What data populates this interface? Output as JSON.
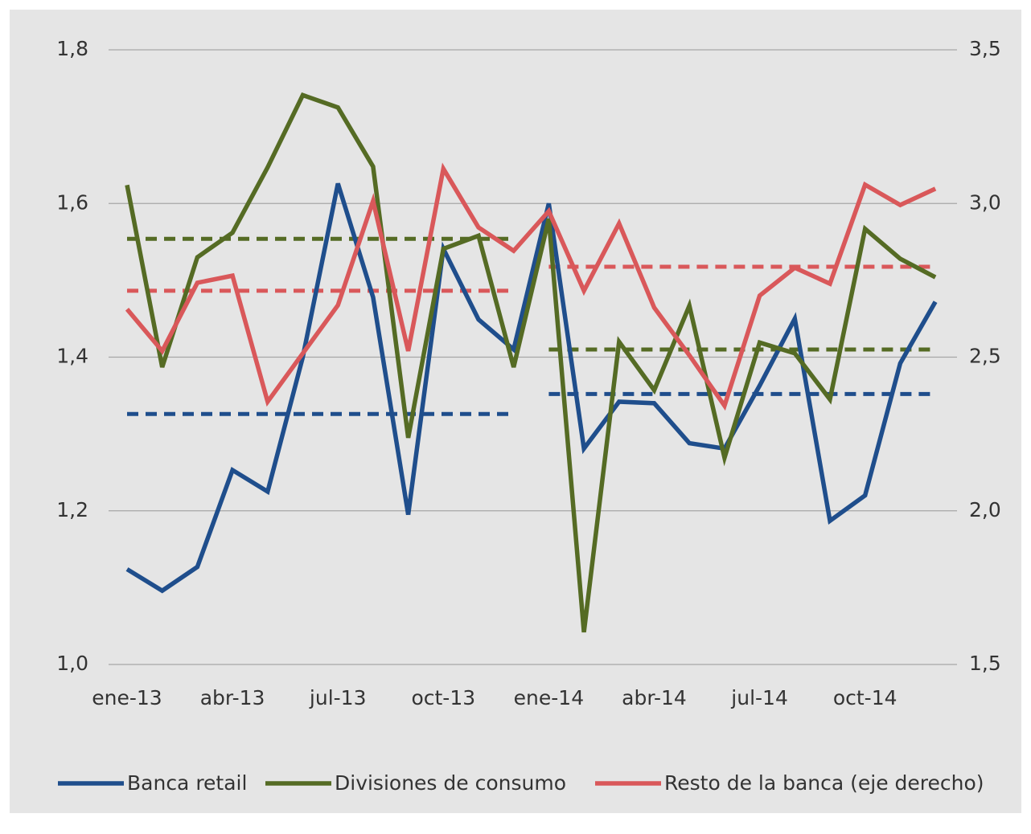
{
  "chart_data": {
    "type": "line",
    "categories": [
      "ene-13",
      null,
      null,
      "abr-13",
      null,
      null,
      "jul-13",
      null,
      null,
      "oct-13",
      null,
      null,
      "ene-14",
      null,
      null,
      "abr-14",
      null,
      null,
      "jul-14",
      null,
      null,
      "oct-14",
      null,
      null
    ],
    "series": [
      {
        "name": "Banca retail",
        "color": "#1f4e8c",
        "values": [
          1.124,
          1.096,
          1.127,
          1.253,
          1.225,
          1.4,
          1.626,
          1.478,
          1.195,
          1.541,
          1.449,
          1.41,
          1.6,
          1.281,
          1.342,
          1.34,
          1.288,
          1.281,
          1.363,
          1.45,
          1.187,
          1.22,
          1.392,
          1.472
        ]
      },
      {
        "name": "Divisiones de consumo",
        "color": "#556b24",
        "values": [
          1.624,
          1.387,
          1.53,
          1.562,
          1.647,
          1.741,
          1.725,
          1.648,
          1.295,
          1.541,
          1.558,
          1.387,
          1.58,
          1.042,
          1.42,
          1.357,
          1.467,
          1.269,
          1.419,
          1.405,
          1.345,
          1.567,
          1.528,
          1.504
        ]
      },
      {
        "name": "Resto de la banca (eje derecho)",
        "color": "#d9585a",
        "axis": "y2",
        "values": [
          2.656,
          2.52,
          2.742,
          2.765,
          2.355,
          2.512,
          2.669,
          3.008,
          2.52,
          3.113,
          2.922,
          2.846,
          2.975,
          2.716,
          2.935,
          2.661,
          2.506,
          2.342,
          2.7,
          2.791,
          2.739,
          3.061,
          2.995,
          3.048
        ]
      }
    ],
    "reference_lines": [
      {
        "color": "#1f4e8c",
        "start": 0,
        "end": 11,
        "value": 1.326
      },
      {
        "color": "#1f4e8c",
        "start": 12,
        "end": 23,
        "value": 1.352
      },
      {
        "color": "#556b24",
        "start": 0,
        "end": 11,
        "value": 1.554
      },
      {
        "color": "#556b24",
        "start": 12,
        "end": 23,
        "value": 1.41
      },
      {
        "color": "#d9585a",
        "axis": "y2",
        "start": 0,
        "end": 11,
        "value": 2.716
      },
      {
        "color": "#d9585a",
        "axis": "y2",
        "start": 12,
        "end": 23,
        "value": 2.794
      }
    ],
    "ylim": [
      1.0,
      1.8
    ],
    "yticks": [
      {
        "value": 1.0,
        "label": "1,0"
      },
      {
        "value": 1.2,
        "label": "1,2"
      },
      {
        "value": 1.4,
        "label": "1,4"
      },
      {
        "value": 1.6,
        "label": "1,6"
      },
      {
        "value": 1.8,
        "label": "1,8"
      }
    ],
    "y2lim": [
      1.5,
      3.5
    ],
    "y2ticks": [
      {
        "value": 1.5,
        "label": "1,5"
      },
      {
        "value": 2.0,
        "label": "2,0"
      },
      {
        "value": 2.5,
        "label": "2,5"
      },
      {
        "value": 3.0,
        "label": "3,0"
      },
      {
        "value": 3.5,
        "label": "3,5"
      }
    ],
    "grid": true,
    "legend": "bottom"
  }
}
